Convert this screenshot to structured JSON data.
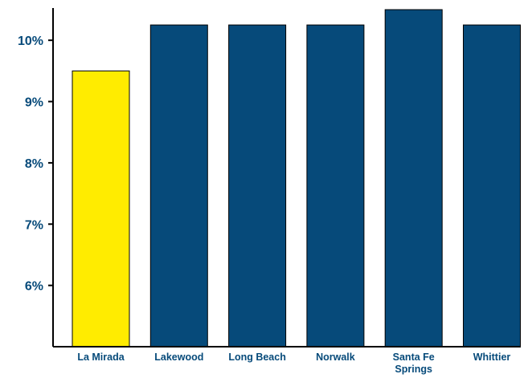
{
  "chart_data": {
    "type": "bar",
    "categories": [
      "La Mirada",
      "Lakewood",
      "Long Beach",
      "Norwalk",
      "Santa Fe Springs",
      "Whittier"
    ],
    "category_lines": [
      [
        "La Mirada"
      ],
      [
        "Lakewood"
      ],
      [
        "Long Beach"
      ],
      [
        "Norwalk"
      ],
      [
        "Santa Fe",
        "Springs"
      ],
      [
        "Whittier"
      ]
    ],
    "values": [
      9.5,
      10.25,
      10.25,
      10.25,
      10.5,
      10.25
    ],
    "bar_colors": [
      "#FFEC00",
      "#064A7A",
      "#064A7A",
      "#064A7A",
      "#064A7A",
      "#064A7A"
    ],
    "label_color": "#064A7A",
    "axis_color": "#000000",
    "y_ticks": [
      6,
      7,
      8,
      9,
      10
    ],
    "y_tick_labels": [
      "6%",
      "7%",
      "8%",
      "9%",
      "10%"
    ],
    "ylim": [
      5.0,
      10.5
    ],
    "title": "",
    "xlabel": "",
    "ylabel": "",
    "grid": false
  }
}
